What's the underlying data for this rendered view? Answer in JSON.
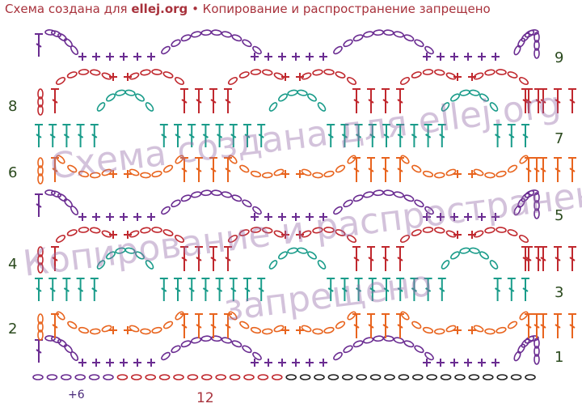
{
  "header": {
    "prefix": "Схема создана для",
    "site": "ellej.org",
    "suffix": "• Копирование и распространение запрещено"
  },
  "row_numbers": {
    "right": [
      "9",
      "7",
      "5",
      "3",
      "1"
    ],
    "left": [
      "8",
      "6",
      "4",
      "2"
    ]
  },
  "foundation_labels": {
    "repeat_extra": "+6",
    "repeat": "12"
  },
  "watermark": [
    "Схема создана для ellej.org",
    "Копирование и распространение",
    "запрещено"
  ]
}
